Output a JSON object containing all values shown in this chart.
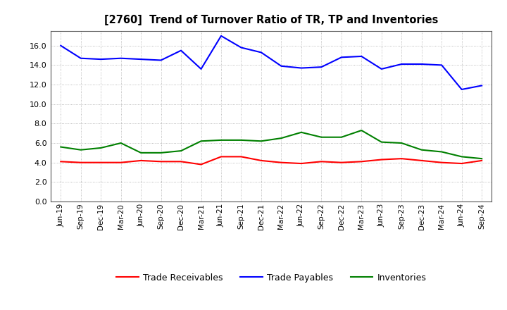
{
  "title": "[2760]  Trend of Turnover Ratio of TR, TP and Inventories",
  "labels": [
    "Jun-19",
    "Sep-19",
    "Dec-19",
    "Mar-20",
    "Jun-20",
    "Sep-20",
    "Dec-20",
    "Mar-21",
    "Jun-21",
    "Sep-21",
    "Dec-21",
    "Mar-22",
    "Jun-22",
    "Sep-22",
    "Dec-22",
    "Mar-23",
    "Jun-23",
    "Sep-23",
    "Dec-23",
    "Mar-24",
    "Jun-24",
    "Sep-24"
  ],
  "trade_receivables": [
    4.1,
    4.0,
    4.0,
    4.0,
    4.2,
    4.1,
    4.1,
    3.8,
    4.6,
    4.6,
    4.2,
    4.0,
    3.9,
    4.1,
    4.0,
    4.1,
    4.3,
    4.4,
    4.2,
    4.0,
    3.9,
    4.2
  ],
  "trade_payables": [
    16.0,
    14.7,
    14.6,
    14.7,
    14.6,
    14.5,
    15.5,
    13.6,
    17.0,
    15.8,
    15.3,
    13.9,
    13.7,
    13.8,
    14.8,
    14.9,
    13.6,
    14.1,
    14.1,
    14.0,
    11.5,
    11.9
  ],
  "inventories": [
    5.6,
    5.3,
    5.5,
    6.0,
    5.0,
    5.0,
    5.2,
    6.2,
    6.3,
    6.3,
    6.2,
    6.5,
    7.1,
    6.6,
    6.6,
    7.3,
    6.1,
    6.0,
    5.3,
    5.1,
    4.6,
    4.4
  ],
  "ylim": [
    0,
    17.5
  ],
  "yticks": [
    0.0,
    2.0,
    4.0,
    6.0,
    8.0,
    10.0,
    12.0,
    14.0,
    16.0
  ],
  "tr_color": "#ff0000",
  "tp_color": "#0000ff",
  "inv_color": "#008000",
  "bg_color": "#ffffff",
  "plot_bg_color": "#ffffff",
  "grid_color": "#aaaaaa",
  "legend_tr": "Trade Receivables",
  "legend_tp": "Trade Payables",
  "legend_inv": "Inventories"
}
